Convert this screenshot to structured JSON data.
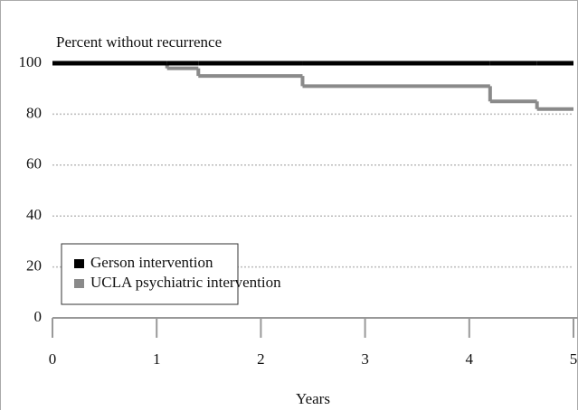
{
  "chart_data": {
    "type": "step",
    "y_label": "Percent without recurrence",
    "x_label": "Years",
    "x": [
      0,
      1.1,
      1.4,
      2.4,
      4.2,
      4.65
    ],
    "series": [
      {
        "name": "Gerson intervention",
        "color": "#000000",
        "values": [
          100,
          100,
          100,
          100,
          100,
          100
        ]
      },
      {
        "name": "UCLA psychiatric intervention",
        "color": "#8a8a8a",
        "values": [
          100,
          98,
          95,
          91,
          85,
          82
        ]
      }
    ],
    "xlim": [
      0,
      5
    ],
    "xticks": [
      0,
      1,
      2,
      3,
      4,
      5
    ],
    "ylim": [
      0,
      100
    ],
    "yticks": [
      0,
      20,
      40,
      60,
      80,
      100
    ],
    "grid": true,
    "legend": "lower-left"
  }
}
